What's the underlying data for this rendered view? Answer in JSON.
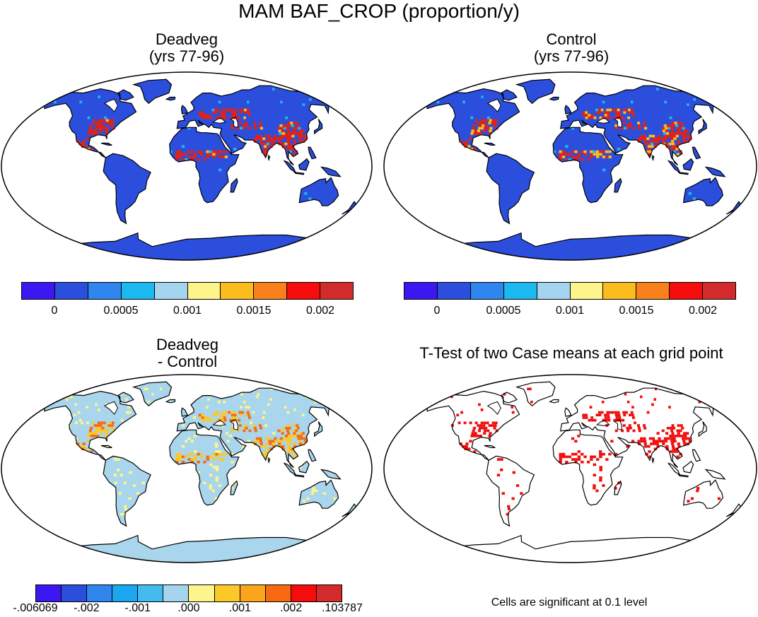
{
  "title": "MAM BAF_CROP (proportion/y)",
  "panels": {
    "deadveg": {
      "title_l1": "Deadveg",
      "title_l2": "(yrs 77-96)"
    },
    "control": {
      "title_l1": "Control",
      "title_l2": "(yrs 77-96)"
    },
    "diff": {
      "title_l1": "Deadveg",
      "title_l2": "- Control"
    },
    "ttest": {
      "title_l1": "T-Test of two Case means at each grid point"
    }
  },
  "colorbar_top": {
    "colors": [
      "#3d17f2",
      "#2b4fdc",
      "#2e86ee",
      "#1cb8f0",
      "#a4d4ee",
      "#fdf58b",
      "#fbbd1d",
      "#f8811c",
      "#f50c0c",
      "#d32b2b"
    ],
    "labels": [
      "0",
      "0.0005",
      "0.001",
      "0.0015",
      "0.002"
    ]
  },
  "colorbar_diff": {
    "colors": [
      "#3d17f2",
      "#2b4fdc",
      "#2e86ee",
      "#1ba6f0",
      "#44bbef",
      "#a4d4ee",
      "#fdf58b",
      "#fbc82a",
      "#fba41c",
      "#f86a12",
      "#f50c0c",
      "#d32b2b"
    ],
    "labels": [
      "-.006069",
      "-.002",
      "-.001",
      ".000",
      ".001",
      ".002",
      ".103787"
    ]
  },
  "note": "Cells are significant at 0.1 level",
  "map_fill": {
    "deadveg": "#2b4fdc",
    "control": "#2b4fdc",
    "diff": "#a9d6ec",
    "ttest": "#ffffff"
  },
  "hot_color": "#e0221a",
  "sig_color": "#f20d0d"
}
